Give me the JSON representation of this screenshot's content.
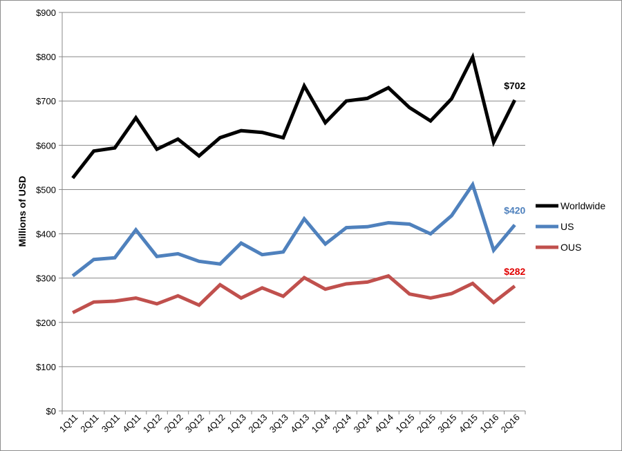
{
  "chart_data": {
    "type": "line",
    "ylabel": "Millions of USD",
    "ylim": [
      0,
      900
    ],
    "y_ticks": [
      "$0",
      "$100",
      "$200",
      "$300",
      "$400",
      "$500",
      "$600",
      "$700",
      "$800",
      "$900"
    ],
    "grid": true,
    "legend_position": "right",
    "categories": [
      "1Q11",
      "2Q11",
      "3Q11",
      "4Q11",
      "1Q12",
      "2Q12",
      "3Q12",
      "4Q12",
      "1Q13",
      "2Q13",
      "3Q13",
      "4Q13",
      "1Q14",
      "2Q14",
      "3Q14",
      "4Q14",
      "1Q15",
      "2Q15",
      "3Q15",
      "4Q15",
      "1Q16",
      "2Q16"
    ],
    "series": [
      {
        "name": "Worldwide",
        "color": "#000000",
        "values": [
          526,
          587,
          594,
          662,
          591,
          614,
          576,
          617,
          633,
          629,
          617,
          734,
          651,
          700,
          706,
          730,
          685,
          655,
          705,
          799,
          607,
          702
        ],
        "end_label": "$702"
      },
      {
        "name": "US",
        "color": "#4f81bd",
        "values": [
          305,
          342,
          346,
          409,
          349,
          355,
          338,
          332,
          379,
          353,
          359,
          434,
          377,
          414,
          416,
          425,
          422,
          400,
          441,
          511,
          363,
          420
        ],
        "end_label": "$420"
      },
      {
        "name": "OUS",
        "color": "#c0504d",
        "values": [
          222,
          246,
          248,
          255,
          242,
          260,
          239,
          285,
          255,
          278,
          259,
          301,
          275,
          287,
          291,
          305,
          264,
          255,
          265,
          288,
          245,
          282
        ],
        "end_label": "$282",
        "end_label_color": "#e00000"
      }
    ]
  }
}
